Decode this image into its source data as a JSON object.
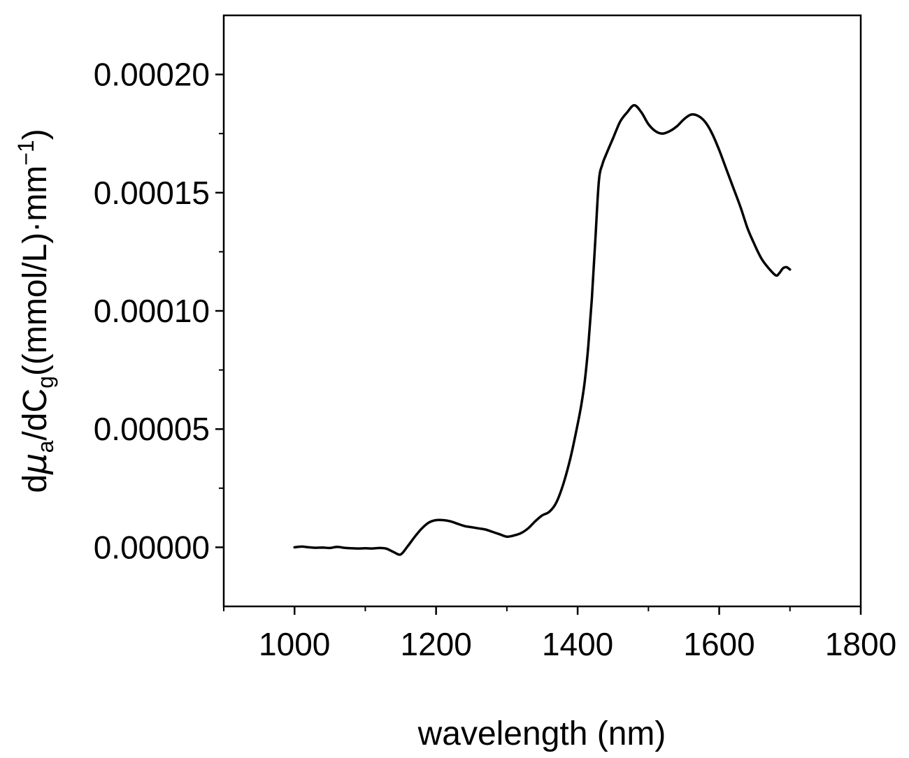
{
  "chart_data": {
    "type": "line",
    "title": "",
    "xlabel": "wavelength (nm)",
    "ylabel": {
      "prefix": "d",
      "mu": "μ",
      "mu_sub": "a",
      "middle": "/dC",
      "c_sub": "g",
      "units": "((mmol/L)·mm",
      "exp": "−1",
      "close": ")"
    },
    "xlim": [
      900,
      1800
    ],
    "ylim": [
      -2.5e-05,
      0.000225
    ],
    "x_ticks": [
      1000,
      1200,
      1400,
      1600,
      1800
    ],
    "x_tick_labels": [
      "1000",
      "1200",
      "1400",
      "1600",
      "1800"
    ],
    "x_minor_ticks": [
      900,
      1100,
      1300,
      1500,
      1700
    ],
    "y_ticks": [
      0,
      5e-05,
      0.0001,
      0.00015,
      0.0002
    ],
    "y_tick_labels": [
      "0.00000",
      "0.00005",
      "0.00010",
      "0.00015",
      "0.00020"
    ],
    "y_minor_ticks": [
      2.5e-05,
      7.5e-05,
      0.000125,
      0.000175
    ],
    "grid": false,
    "legend": "none",
    "series": [
      {
        "color": "#000000",
        "x": [
          1000,
          1010,
          1020,
          1030,
          1040,
          1050,
          1060,
          1070,
          1080,
          1090,
          1100,
          1110,
          1120,
          1130,
          1140,
          1150,
          1160,
          1170,
          1180,
          1190,
          1200,
          1210,
          1220,
          1230,
          1240,
          1250,
          1260,
          1270,
          1280,
          1290,
          1300,
          1310,
          1320,
          1330,
          1340,
          1350,
          1360,
          1370,
          1380,
          1390,
          1400,
          1405,
          1410,
          1415,
          1420,
          1425,
          1430,
          1435,
          1440,
          1450,
          1460,
          1470,
          1480,
          1490,
          1500,
          1510,
          1520,
          1530,
          1540,
          1550,
          1560,
          1570,
          1580,
          1590,
          1600,
          1610,
          1620,
          1630,
          1640,
          1650,
          1660,
          1670,
          1680,
          1685,
          1690,
          1695,
          1700
        ],
        "y": [
          0.0,
          3e-07,
          0.0,
          -2e-07,
          -1e-07,
          -3e-07,
          2e-07,
          -2e-07,
          -4e-07,
          -5e-07,
          -4e-07,
          -5e-07,
          -3e-07,
          -6e-07,
          -2e-06,
          -3e-06,
          5e-07,
          4.5e-06,
          8e-06,
          1.05e-05,
          1.15e-05,
          1.15e-05,
          1.1e-05,
          1e-05,
          9e-06,
          8.5e-06,
          8e-06,
          7.5e-06,
          6.5e-06,
          5.5e-06,
          4.5e-06,
          5e-06,
          6e-06,
          8e-06,
          1.1e-05,
          1.35e-05,
          1.5e-05,
          1.9e-05,
          2.7e-05,
          3.8e-05,
          5.2e-05,
          6e-05,
          7e-05,
          8.5e-05,
          0.000105,
          0.00013,
          0.000155,
          0.000162,
          0.000166,
          0.000173,
          0.00018,
          0.000184,
          0.000187,
          0.000184,
          0.000179,
          0.000176,
          0.000175,
          0.000176,
          0.000178,
          0.000181,
          0.000183,
          0.0001825,
          0.00018,
          0.000175,
          0.000168,
          0.00016,
          0.000152,
          0.000144,
          0.000135,
          0.000128,
          0.000122,
          0.000118,
          0.000115,
          0.000116,
          0.000118,
          0.0001185,
          0.0001175
        ]
      }
    ]
  }
}
